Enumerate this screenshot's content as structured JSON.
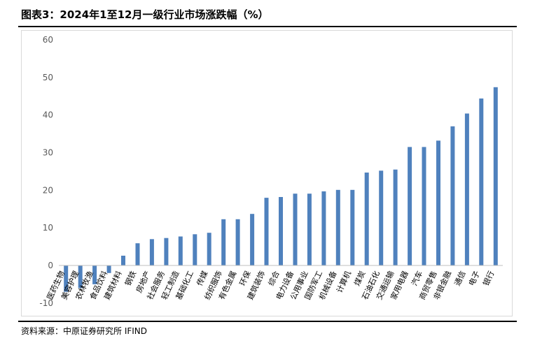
{
  "header": {
    "title": "图表3：2024年1至12月一级行业市场涨跌幅（%）"
  },
  "footer": {
    "source": "资料来源：中原证券研究所 IFIND"
  },
  "chart_data": {
    "type": "bar",
    "title": "",
    "xlabel": "",
    "ylabel": "",
    "ylim": [
      -10,
      60
    ],
    "yticks": [
      -10,
      0,
      10,
      20,
      30,
      40,
      50,
      60
    ],
    "grid": false,
    "legend": "none",
    "colors": {
      "bar": "#4f81bd",
      "axis": "#bfbfbf",
      "tick_text": "#595959"
    },
    "categories": [
      "医药生物",
      "美容护理",
      "农林牧渔",
      "食品饮料",
      "建筑材料",
      "钢铁",
      "房地产",
      "社会服务",
      "轻工制造",
      "基础化工",
      "传媒",
      "纺织服饰",
      "有色金属",
      "环保",
      "建筑装饰",
      "综合",
      "电力设备",
      "公用事业",
      "国防军工",
      "机械设备",
      "计算机",
      "煤炭",
      "石油石化",
      "交通运输",
      "家用电器",
      "汽车",
      "商贸零售",
      "非银金融",
      "通信",
      "电子",
      "银行"
    ],
    "values": [
      -7.0,
      -6.0,
      -5.0,
      -2.0,
      2.6,
      5.9,
      7.0,
      7.3,
      7.7,
      8.3,
      8.7,
      12.3,
      12.3,
      13.7,
      18.0,
      18.2,
      19.1,
      19.1,
      19.7,
      20.1,
      20.1,
      24.7,
      25.2,
      25.5,
      31.5,
      31.5,
      33.2,
      37.0,
      40.4,
      44.4,
      47.4
    ]
  }
}
